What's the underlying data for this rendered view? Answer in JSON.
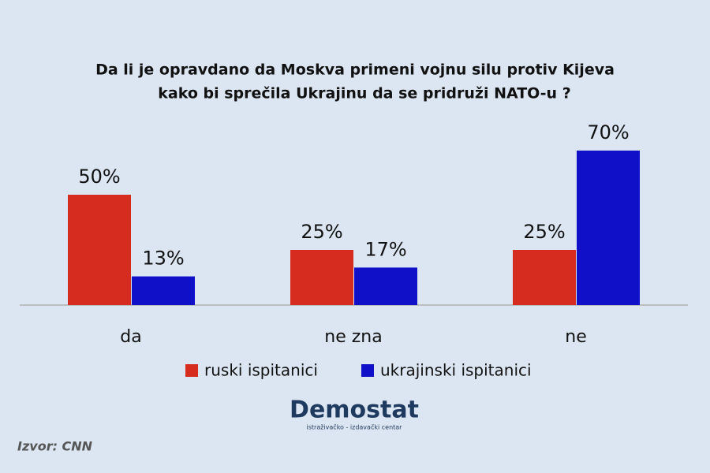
{
  "chart_data": {
    "type": "bar",
    "title": [
      "Da li je opravdano da Moskva primeni vojnu silu protiv Kijeva",
      "kako bi sprečila Ukrajinu da se pridruži NATO-u ?"
    ],
    "categories": [
      "da",
      "ne zna",
      "ne"
    ],
    "series": [
      {
        "name": "ruski ispitanici",
        "color": "#d62b1f",
        "values": [
          50,
          25,
          25
        ],
        "value_labels": [
          "50%",
          "25%",
          "25%"
        ]
      },
      {
        "name": "ukrajinski ispitanici",
        "color": "#1010c8",
        "values": [
          13,
          17,
          70
        ],
        "value_labels": [
          "13%",
          "17%",
          "70%"
        ]
      }
    ]
  },
  "logo": {
    "name": "Demostat",
    "tagline": "istraživačko - izdavački centar"
  },
  "source": "Izvor: CNN"
}
